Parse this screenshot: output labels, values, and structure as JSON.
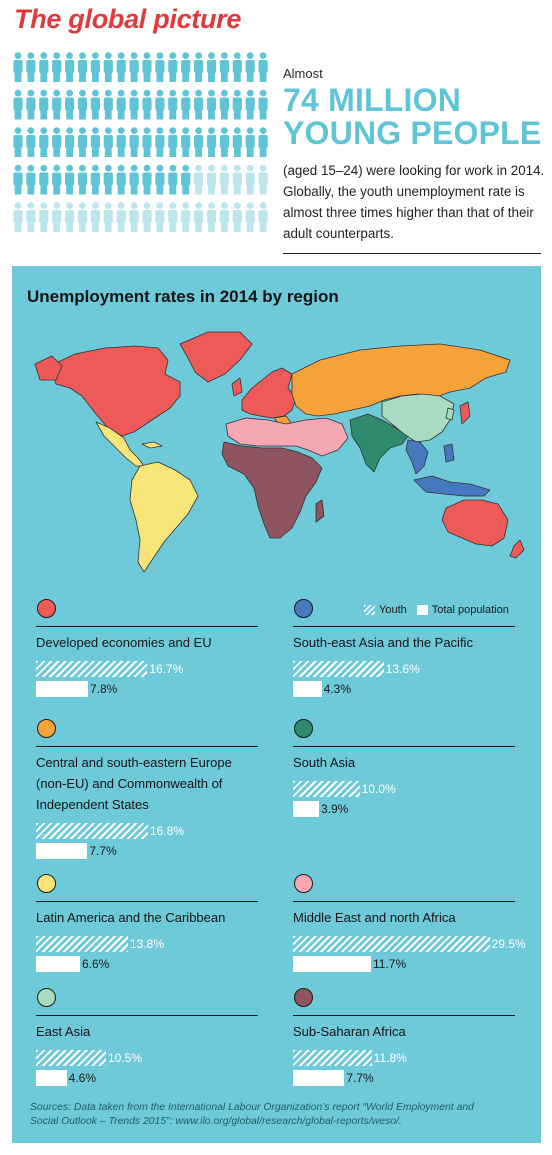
{
  "title": "The global picture",
  "intro": {
    "almost": "Almost",
    "big_line1": "74 MILLION",
    "big_line2": "YOUNG PEOPLE",
    "description": "(aged 15–24) were looking for work in 2014. Globally, the youth unemployment rate is almost three times higher than that of their adult counterparts."
  },
  "people_pictogram": {
    "colors": {
      "filled": "#5fc4d6",
      "faded": "#bde5ed"
    }
  },
  "panel": {
    "title": "Unemployment rates in 2014 by region",
    "background": "#6ec9d9"
  },
  "legend": {
    "youth": "Youth",
    "total": "Total population"
  },
  "chart_data": {
    "type": "bar",
    "title": "Unemployment rates in 2014 by region",
    "unit": "%",
    "series_names": [
      "Youth",
      "Total population"
    ],
    "regions": [
      {
        "name": "Developed economies and EU",
        "color": "#ee5a57",
        "youth": 16.7,
        "total": 7.8,
        "youth_label": "16.7%",
        "total_label": "7.8%"
      },
      {
        "name": "South-east Asia and the Pacific",
        "color": "#4678c0",
        "youth": 13.6,
        "total": 4.3,
        "youth_label": "13.6%",
        "total_label": "4.3%"
      },
      {
        "name": "Central and south-eastern Europe (non-EU) and Commonwealth of Independent States",
        "color": "#f7a13b",
        "youth": 16.8,
        "total": 7.7,
        "youth_label": "16.8%",
        "total_label": "7.7%"
      },
      {
        "name": "South Asia",
        "color": "#2f8a6e",
        "youth": 10.0,
        "total": 3.9,
        "youth_label": "10.0%",
        "total_label": "3.9%"
      },
      {
        "name": "Latin America and the Caribbean",
        "color": "#f8e57a",
        "youth": 13.8,
        "total": 6.6,
        "youth_label": "13.8%",
        "total_label": "6.6%"
      },
      {
        "name": "Middle East and north Africa",
        "color": "#f5a7b4",
        "youth": 29.5,
        "total": 11.7,
        "youth_label": "29.5%",
        "total_label": "11.7%"
      },
      {
        "name": "East Asia",
        "color": "#a8dcc0",
        "youth": 10.5,
        "total": 4.6,
        "youth_label": "10.5%",
        "total_label": "4.6%"
      },
      {
        "name": "Sub-Saharan Africa",
        "color": "#8e5460",
        "youth": 11.8,
        "total": 7.7,
        "youth_label": "11.8%",
        "total_label": "7.7%"
      }
    ]
  },
  "sources": "Sources: Data taken from the International Labour Organization’s report “World Employment and Social Outlook – Trends 2015”: www.ilo.org/global/research/global-reports/weso/."
}
